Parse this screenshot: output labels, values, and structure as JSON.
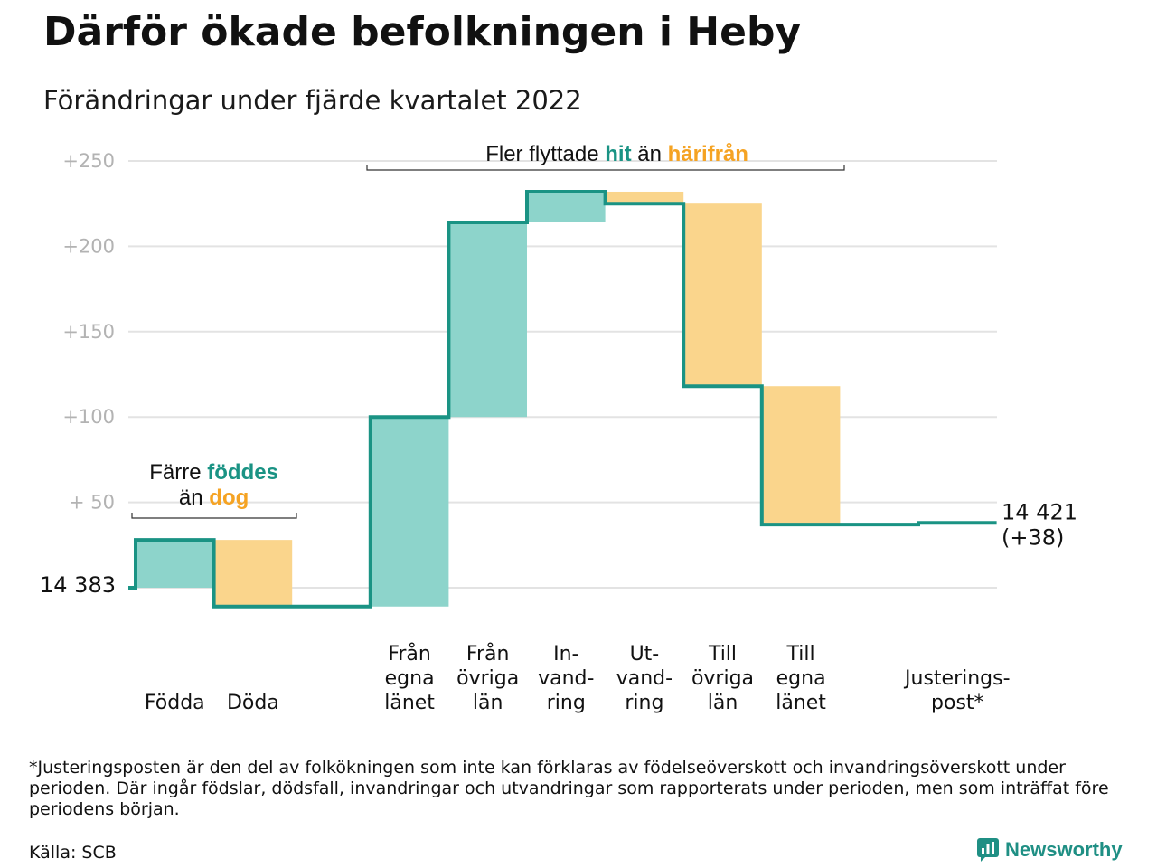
{
  "title": "Därför ökade befolkningen i Heby",
  "subtitle": "Förändringar under fjärde kvartalet 2022",
  "chart_data": {
    "type": "waterfall",
    "ylim": [
      -12,
      262
    ],
    "yticks": [
      {
        "value": 250,
        "label": "+250"
      },
      {
        "value": 200,
        "label": "+200"
      },
      {
        "value": 150,
        "label": "+150"
      },
      {
        "value": 100,
        "label": "+100"
      },
      {
        "value": 50,
        "label": "+ 50"
      }
    ],
    "start": {
      "value": 0,
      "label": "14 383"
    },
    "end": {
      "value": 38,
      "label_line1": "14 421",
      "label_line2": "(+38)"
    },
    "steps": [
      {
        "label": [
          "Födda"
        ],
        "value": 28,
        "kind": "increase"
      },
      {
        "label": [
          "Döda"
        ],
        "value": -39,
        "kind": "decrease"
      },
      {
        "label": [],
        "value": 0,
        "kind": "gap"
      },
      {
        "label": [
          "Från",
          "egna",
          "länet"
        ],
        "value": 111,
        "kind": "increase"
      },
      {
        "label": [
          "Från",
          "övriga",
          "län"
        ],
        "value": 114,
        "kind": "increase"
      },
      {
        "label": [
          "In-",
          "vand-",
          "ring"
        ],
        "value": 18,
        "kind": "increase"
      },
      {
        "label": [
          "Ut-",
          "vand-",
          "ring"
        ],
        "value": -7,
        "kind": "decrease"
      },
      {
        "label": [
          "Till",
          "övriga",
          "län"
        ],
        "value": -107,
        "kind": "decrease"
      },
      {
        "label": [
          "Till",
          "egna",
          "länet"
        ],
        "value": -81,
        "kind": "decrease"
      },
      {
        "label": [],
        "value": 0,
        "kind": "gap"
      },
      {
        "label": [
          "Justerings-",
          "post*"
        ],
        "value": 1,
        "kind": "adjustment"
      }
    ],
    "annotations": {
      "births": {
        "line1_a": "Färre ",
        "line1_b": "föddes",
        "line2_a": "än ",
        "line2_b": "dog"
      },
      "migration": {
        "a": "Fler flyttade ",
        "b": "hit",
        "c": " än ",
        "d": "härifrån"
      }
    },
    "colors": {
      "increase": "#8dd4cb",
      "decrease": "#fad58c",
      "line": "#1a9384",
      "grid": "#e3e3e3",
      "accent_orange": "#f5a323"
    }
  },
  "footnote": "*Justeringsposten är den del av folkökningen som inte kan förklaras av födelseöverskott och invandringsöverskott under perioden. Där ingår födslar, dödsfall, invandringar och utvandringar som rapporterats under perioden, men som inträffat före periodens början.",
  "source": "Källa: SCB",
  "brand": {
    "name": "Newsworthy",
    "icon": "newsworthy-logo-icon"
  }
}
